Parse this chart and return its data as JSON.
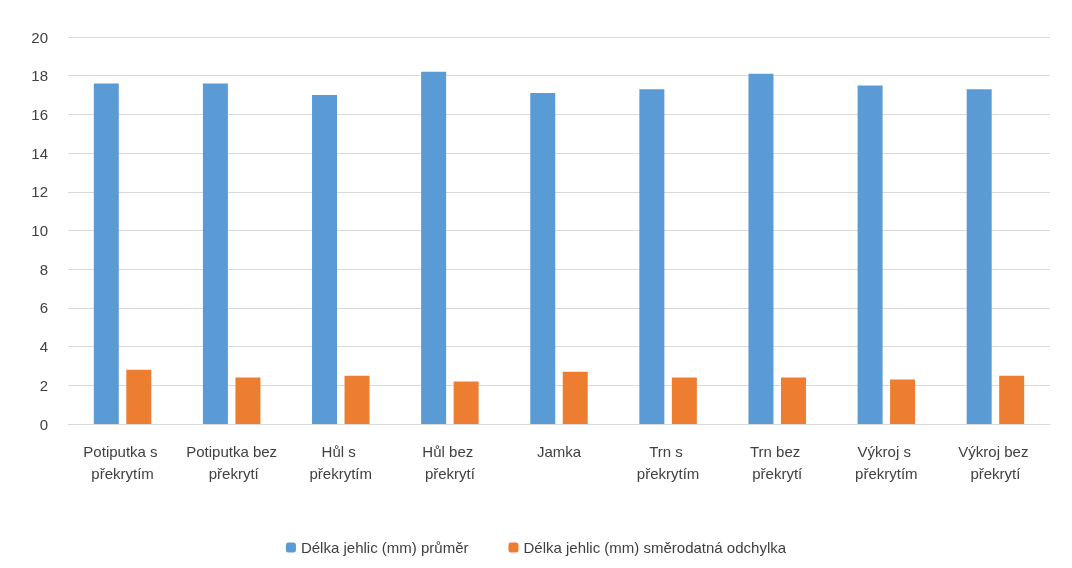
{
  "chart_data": {
    "type": "bar",
    "categories": [
      "Potiputka s překrytím",
      "Potiputka bez překrytí",
      "Hůl s překrytím",
      "Hůl bez překrytí",
      "Jamka",
      "Trn s překrytím",
      "Trn bez překrytí",
      "Výkroj s překrytím",
      "Výkroj bez překrytí"
    ],
    "series": [
      {
        "name": "Délka jehlic (mm) průměr",
        "color": "#5b9bd5",
        "values": [
          17.6,
          17.6,
          17.0,
          18.2,
          17.1,
          17.3,
          18.1,
          17.5,
          17.3
        ]
      },
      {
        "name": "Délka jehlic (mm) směrodatná odchylka",
        "color": "#ed7d31",
        "values": [
          2.8,
          2.4,
          2.5,
          2.2,
          2.7,
          2.4,
          2.4,
          2.3,
          2.5
        ]
      }
    ],
    "ylim": [
      0,
      20
    ],
    "yticks": [
      0,
      2,
      4,
      6,
      8,
      10,
      12,
      14,
      16,
      18,
      20
    ],
    "grid": "y",
    "legend": "bottom"
  }
}
